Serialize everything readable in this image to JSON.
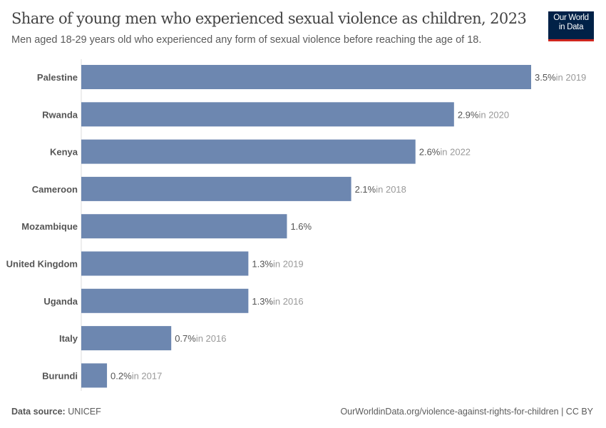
{
  "header": {
    "title": "Share of young men who experienced sexual violence as children, 2023",
    "subtitle": "Men aged 18-29 years old who experienced any form of sexual violence before reaching the age of 18.",
    "logo": "Our World in Data"
  },
  "footer": {
    "source_label": "Data source:",
    "source": "UNICEF",
    "url": "OurWorldinData.org/violence-against-rights-for-children | CC BY"
  },
  "colors": {
    "bar": "#6d87b0",
    "logo_bg": "#002147",
    "logo_accent": "#ce261e"
  },
  "chart_data": {
    "type": "bar",
    "orientation": "horizontal",
    "unit": "%",
    "categories": [
      "Palestine",
      "Rwanda",
      "Kenya",
      "Cameroon",
      "Mozambique",
      "United Kingdom",
      "Uganda",
      "Italy",
      "Burundi"
    ],
    "values": [
      3.5,
      2.9,
      2.6,
      2.1,
      1.6,
      1.3,
      1.3,
      0.7,
      0.2
    ],
    "value_labels": [
      "3.5%",
      "2.9%",
      "2.6%",
      "2.1%",
      "1.6%",
      "1.3%",
      "1.3%",
      "0.7%",
      "0.2%"
    ],
    "year_notes": [
      "in 2019",
      "in 2020",
      "in 2022",
      "in 2018",
      "",
      "in 2019",
      "in 2016",
      "in 2016",
      "in 2017"
    ],
    "xlim": [
      0,
      3.5
    ],
    "grid": false
  }
}
